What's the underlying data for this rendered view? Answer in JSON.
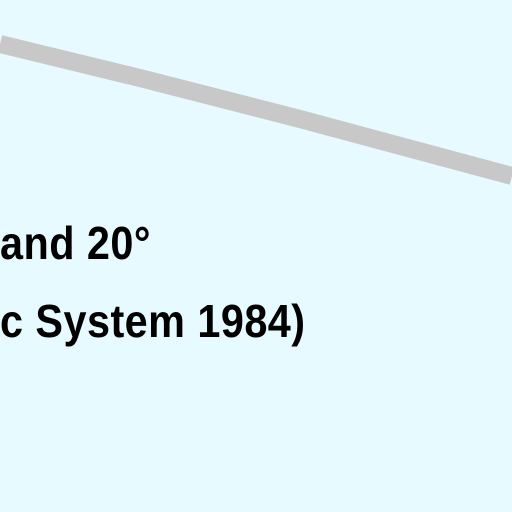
{
  "map": {
    "background_color": "#e6faff",
    "boundary_line_color": "#c8c8c8",
    "text_color": "#000000",
    "label": {
      "line1": "and 20°",
      "line2": "c System 1984)"
    }
  }
}
